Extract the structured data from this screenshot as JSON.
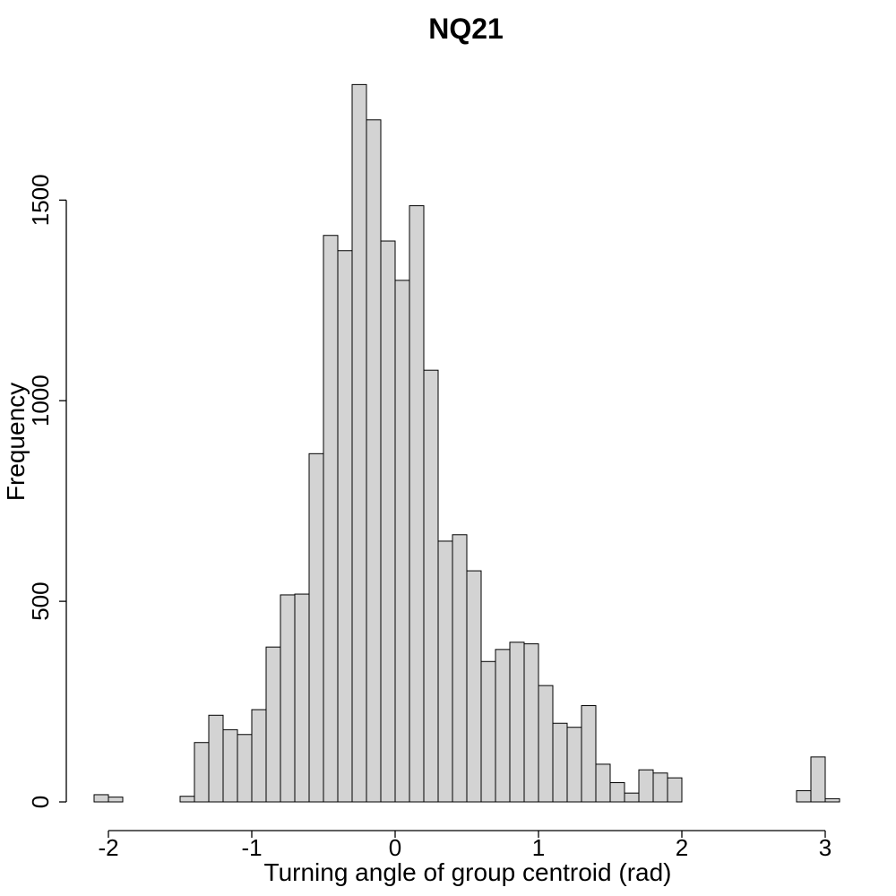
{
  "chart_data": {
    "type": "bar",
    "title": "NQ21",
    "xlabel": "Turning angle of group centroid (rad)",
    "ylabel": "Frequency",
    "bin_width": 0.1,
    "bins": [
      {
        "x0": -2.1,
        "x1": -2.0,
        "count": 18
      },
      {
        "x0": -2.0,
        "x1": -1.9,
        "count": 12
      },
      {
        "x0": -1.9,
        "x1": -1.8,
        "count": 0
      },
      {
        "x0": -1.8,
        "x1": -1.7,
        "count": 0
      },
      {
        "x0": -1.7,
        "x1": -1.6,
        "count": 0
      },
      {
        "x0": -1.6,
        "x1": -1.5,
        "count": 0
      },
      {
        "x0": -1.5,
        "x1": -1.4,
        "count": 14
      },
      {
        "x0": -1.4,
        "x1": -1.3,
        "count": 148
      },
      {
        "x0": -1.3,
        "x1": -1.2,
        "count": 216
      },
      {
        "x0": -1.2,
        "x1": -1.1,
        "count": 180
      },
      {
        "x0": -1.1,
        "x1": -1.0,
        "count": 168
      },
      {
        "x0": -1.0,
        "x1": -0.9,
        "count": 230
      },
      {
        "x0": -0.9,
        "x1": -0.8,
        "count": 386
      },
      {
        "x0": -0.8,
        "x1": -0.7,
        "count": 516
      },
      {
        "x0": -0.7,
        "x1": -0.6,
        "count": 518
      },
      {
        "x0": -0.6,
        "x1": -0.5,
        "count": 868
      },
      {
        "x0": -0.5,
        "x1": -0.4,
        "count": 1412
      },
      {
        "x0": -0.4,
        "x1": -0.3,
        "count": 1374
      },
      {
        "x0": -0.3,
        "x1": -0.2,
        "count": 1788
      },
      {
        "x0": -0.2,
        "x1": -0.1,
        "count": 1700
      },
      {
        "x0": -0.1,
        "x1": 0.0,
        "count": 1398
      },
      {
        "x0": 0.0,
        "x1": 0.1,
        "count": 1300
      },
      {
        "x0": 0.1,
        "x1": 0.2,
        "count": 1486
      },
      {
        "x0": 0.2,
        "x1": 0.3,
        "count": 1076
      },
      {
        "x0": 0.3,
        "x1": 0.4,
        "count": 650
      },
      {
        "x0": 0.4,
        "x1": 0.5,
        "count": 666
      },
      {
        "x0": 0.5,
        "x1": 0.6,
        "count": 576
      },
      {
        "x0": 0.6,
        "x1": 0.7,
        "count": 350
      },
      {
        "x0": 0.7,
        "x1": 0.8,
        "count": 380
      },
      {
        "x0": 0.8,
        "x1": 0.9,
        "count": 398
      },
      {
        "x0": 0.9,
        "x1": 1.0,
        "count": 394
      },
      {
        "x0": 1.0,
        "x1": 1.1,
        "count": 290
      },
      {
        "x0": 1.1,
        "x1": 1.2,
        "count": 196
      },
      {
        "x0": 1.2,
        "x1": 1.3,
        "count": 186
      },
      {
        "x0": 1.3,
        "x1": 1.4,
        "count": 240
      },
      {
        "x0": 1.4,
        "x1": 1.5,
        "count": 94
      },
      {
        "x0": 1.5,
        "x1": 1.6,
        "count": 48
      },
      {
        "x0": 1.6,
        "x1": 1.7,
        "count": 22
      },
      {
        "x0": 1.7,
        "x1": 1.8,
        "count": 80
      },
      {
        "x0": 1.8,
        "x1": 1.9,
        "count": 72
      },
      {
        "x0": 1.9,
        "x1": 2.0,
        "count": 60
      },
      {
        "x0": 2.0,
        "x1": 2.1,
        "count": 0
      },
      {
        "x0": 2.1,
        "x1": 2.2,
        "count": 0
      },
      {
        "x0": 2.2,
        "x1": 2.3,
        "count": 0
      },
      {
        "x0": 2.3,
        "x1": 2.4,
        "count": 0
      },
      {
        "x0": 2.4,
        "x1": 2.5,
        "count": 0
      },
      {
        "x0": 2.5,
        "x1": 2.6,
        "count": 0
      },
      {
        "x0": 2.6,
        "x1": 2.7,
        "count": 0
      },
      {
        "x0": 2.7,
        "x1": 2.8,
        "count": 0
      },
      {
        "x0": 2.8,
        "x1": 2.9,
        "count": 28
      },
      {
        "x0": 2.9,
        "x1": 3.0,
        "count": 112
      },
      {
        "x0": 3.0,
        "x1": 3.1,
        "count": 8
      }
    ],
    "xlim": [
      -2.1,
      3.1
    ],
    "ylim": [
      0,
      1800
    ],
    "x_ticks": [
      -2,
      -1,
      0,
      1,
      2,
      3
    ],
    "x_tick_labels": [
      "-2",
      "-1",
      "0",
      "1",
      "2",
      "3"
    ],
    "y_ticks": [
      0,
      500,
      1000,
      1500
    ],
    "y_tick_labels": [
      "0",
      "500",
      "1000",
      "1500"
    ],
    "bar_color": "#d3d3d3",
    "edge_color": "#000000",
    "grid": false,
    "legend": "none"
  }
}
